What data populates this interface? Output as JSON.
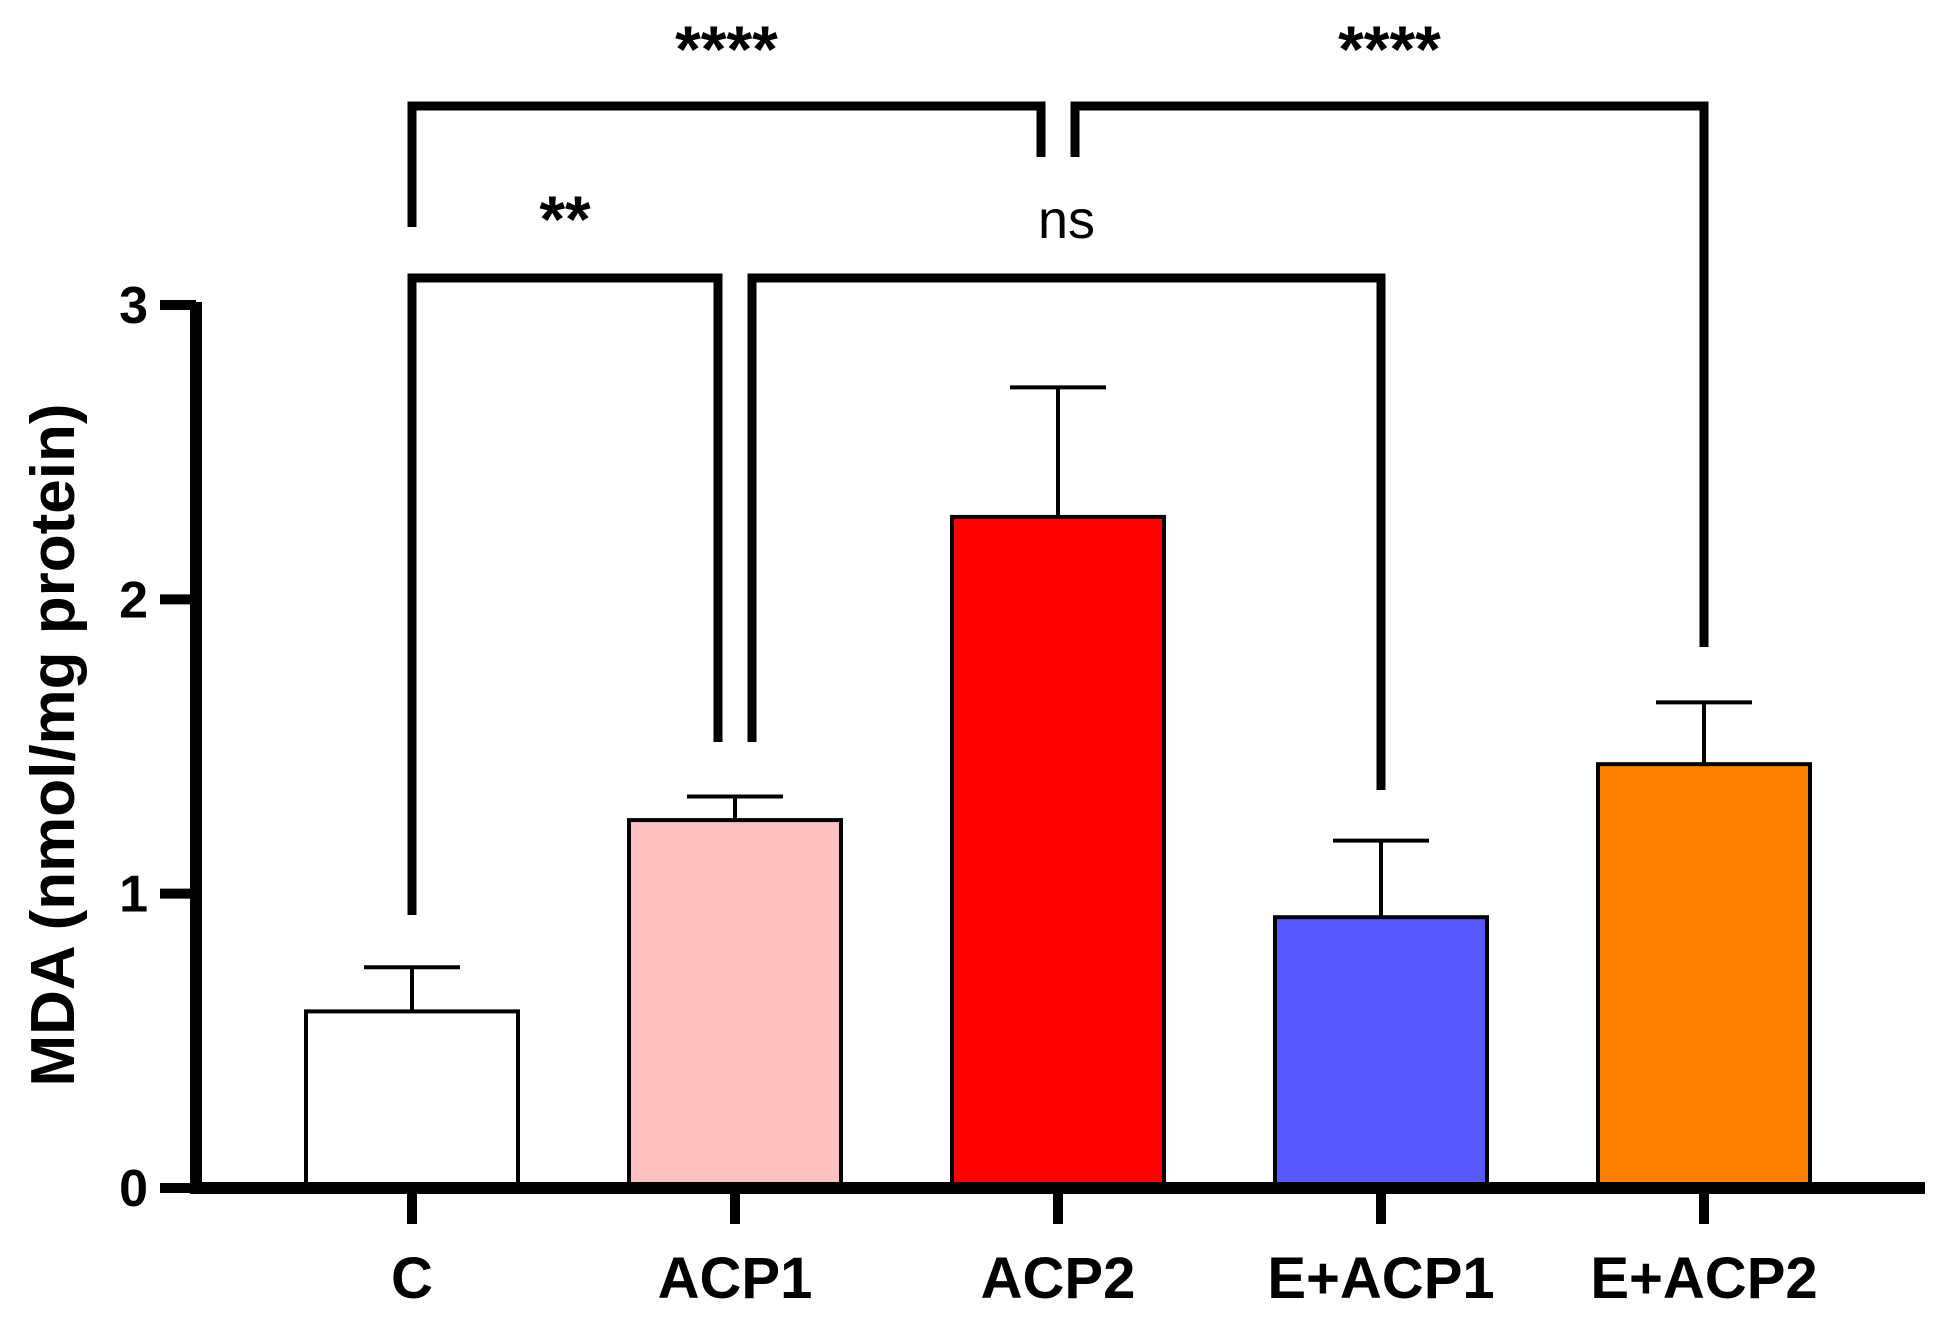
{
  "chart_data": {
    "type": "bar",
    "title": "",
    "xlabel": "",
    "ylabel": "MDA (nmol/mg protein)",
    "ylim": [
      0,
      3
    ],
    "yticks": [
      0,
      1,
      2,
      3
    ],
    "grid": false,
    "categories": [
      "C",
      "ACP1",
      "ACP2",
      "E+ACP1",
      "E+ACP2"
    ],
    "values": [
      0.6,
      1.25,
      2.28,
      0.92,
      1.44
    ],
    "errors": [
      0.15,
      0.08,
      0.44,
      0.26,
      0.21
    ],
    "colors": [
      "#ffffff",
      "#ffc0c0",
      "#ff0000",
      "#5858ff",
      "#ff8000"
    ],
    "significance": [
      {
        "from": "C",
        "to": "ACP1",
        "label": "**"
      },
      {
        "from": "ACP1",
        "to": "E+ACP1",
        "label": "ns"
      },
      {
        "from": "C",
        "to": "ACP2",
        "label": "****"
      },
      {
        "from": "ACP2",
        "to": "E+ACP2",
        "label": "****"
      }
    ]
  }
}
